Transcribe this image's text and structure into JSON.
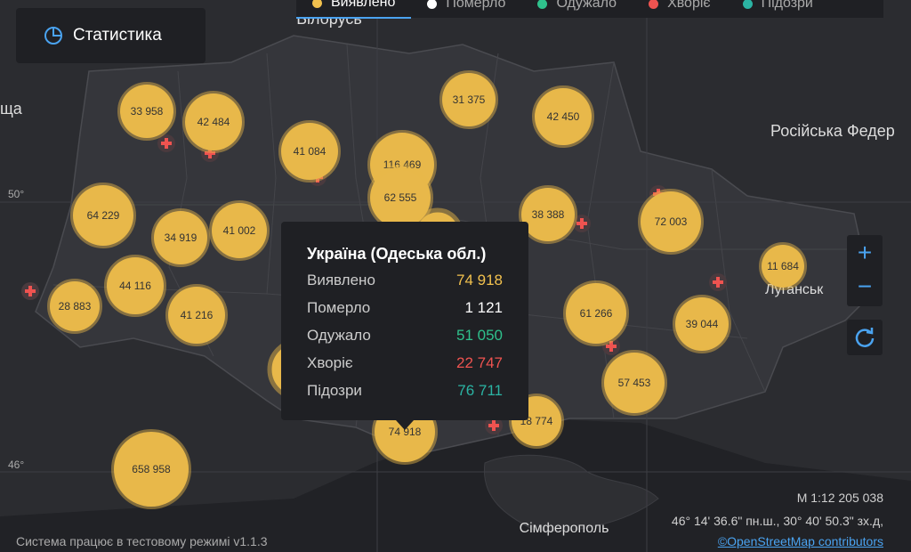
{
  "stats_button": {
    "label": "Статистика"
  },
  "legend": [
    {
      "label": "Виявлено",
      "color": "#f2c14e"
    },
    {
      "label": "Померло",
      "color": "#ffffff"
    },
    {
      "label": "Одужало",
      "color": "#2fc18c"
    },
    {
      "label": "Хворіє",
      "color": "#ef5350"
    },
    {
      "label": "Підозри",
      "color": "#2bb3a3"
    }
  ],
  "map_labels": [
    "Білорусь",
    "Російська Федер",
    "Луганськ",
    "Сімферополь",
    "ща"
  ],
  "grid_labels": [
    "50°",
    "46°"
  ],
  "clusters": [
    "33 958",
    "42 484",
    "41 084",
    "116 469",
    "62 555",
    "31 375",
    "42 450",
    "64 229",
    "34 919",
    "41 002",
    "38 388",
    "72 003",
    "11 684",
    "44 116",
    "28 883",
    "41 216",
    "61 266",
    "39 044",
    "57 453",
    "74 918",
    "18 774",
    "658 958"
  ],
  "tooltip": {
    "title": "Україна (Одеська обл.)",
    "rows": [
      {
        "label": "Виявлено",
        "value": "74 918"
      },
      {
        "label": "Померло",
        "value": "1 121"
      },
      {
        "label": "Одужало",
        "value": "51 050"
      },
      {
        "label": "Хворіє",
        "value": "22 747"
      },
      {
        "label": "Підозри",
        "value": "76 711"
      }
    ]
  },
  "scale": "М 1:12 205 038",
  "coords": "46° 14' 36.6\" пн.ш., 30° 40' 50.3\" зх.д,",
  "attribution": "©OpenStreetMap contributors",
  "footer": "Система працює в тестовому режимі v1.1.3"
}
